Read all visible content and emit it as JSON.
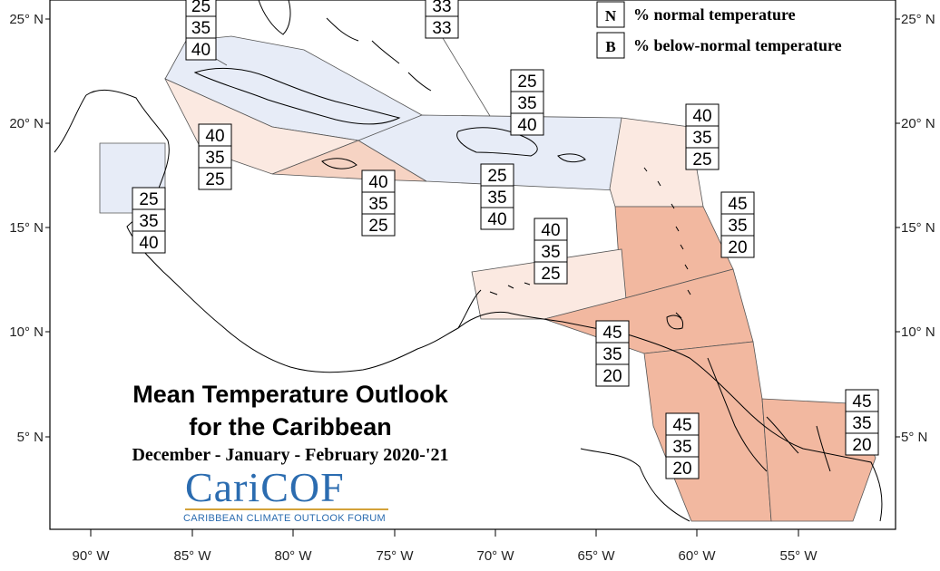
{
  "map": {
    "title_line1": "Mean Temperature Outlook",
    "title_line2": "for the Caribbean",
    "subtitle": "December - January - February 2020-'21",
    "logo": {
      "name": "CariCOF",
      "tagline": "CARIBBEAN CLIMATE OUTLOOK FORUM"
    },
    "legend": {
      "items": [
        {
          "key": "N",
          "label": "% normal temperature"
        },
        {
          "key": "B",
          "label": "% below-normal temperature"
        }
      ]
    },
    "lon_labels": [
      "90° W",
      "85° W",
      "80° W",
      "75° W",
      "70° W",
      "65° W",
      "60° W",
      "55° W"
    ],
    "lat_labels": [
      "25° N",
      "20° N",
      "15° N",
      "10° N",
      "5° N"
    ],
    "colors": {
      "above_light": "#fbe9e1",
      "above_mid": "#f6d3c3",
      "above_strong": "#f2b8a0",
      "below_light": "#e7ecf7",
      "coastline": "#000000"
    },
    "probability_boxes": [
      {
        "id": "bahamas-top",
        "values": [
          "25",
          "35",
          "40"
        ]
      },
      {
        "id": "bahamas-east-top",
        "values": [
          "33",
          "33"
        ]
      },
      {
        "id": "turks-caicos",
        "values": [
          "25",
          "35",
          "40"
        ]
      },
      {
        "id": "cuba-south",
        "values": [
          "40",
          "35",
          "25"
        ]
      },
      {
        "id": "belize",
        "values": [
          "25",
          "35",
          "40"
        ]
      },
      {
        "id": "jamaica",
        "values": [
          "40",
          "35",
          "25"
        ]
      },
      {
        "id": "hispaniola-puerto-rico",
        "values": [
          "25",
          "35",
          "40"
        ]
      },
      {
        "id": "northern-leewards",
        "values": [
          "40",
          "35",
          "25"
        ]
      },
      {
        "id": "windward-islands",
        "values": [
          "45",
          "35",
          "20"
        ]
      },
      {
        "id": "abc-islands",
        "values": [
          "40",
          "35",
          "25"
        ]
      },
      {
        "id": "trinidad",
        "values": [
          "45",
          "35",
          "20"
        ]
      },
      {
        "id": "guyana",
        "values": [
          "45",
          "35",
          "20"
        ]
      },
      {
        "id": "french-guiana",
        "values": [
          "45",
          "35",
          "20"
        ]
      }
    ]
  }
}
